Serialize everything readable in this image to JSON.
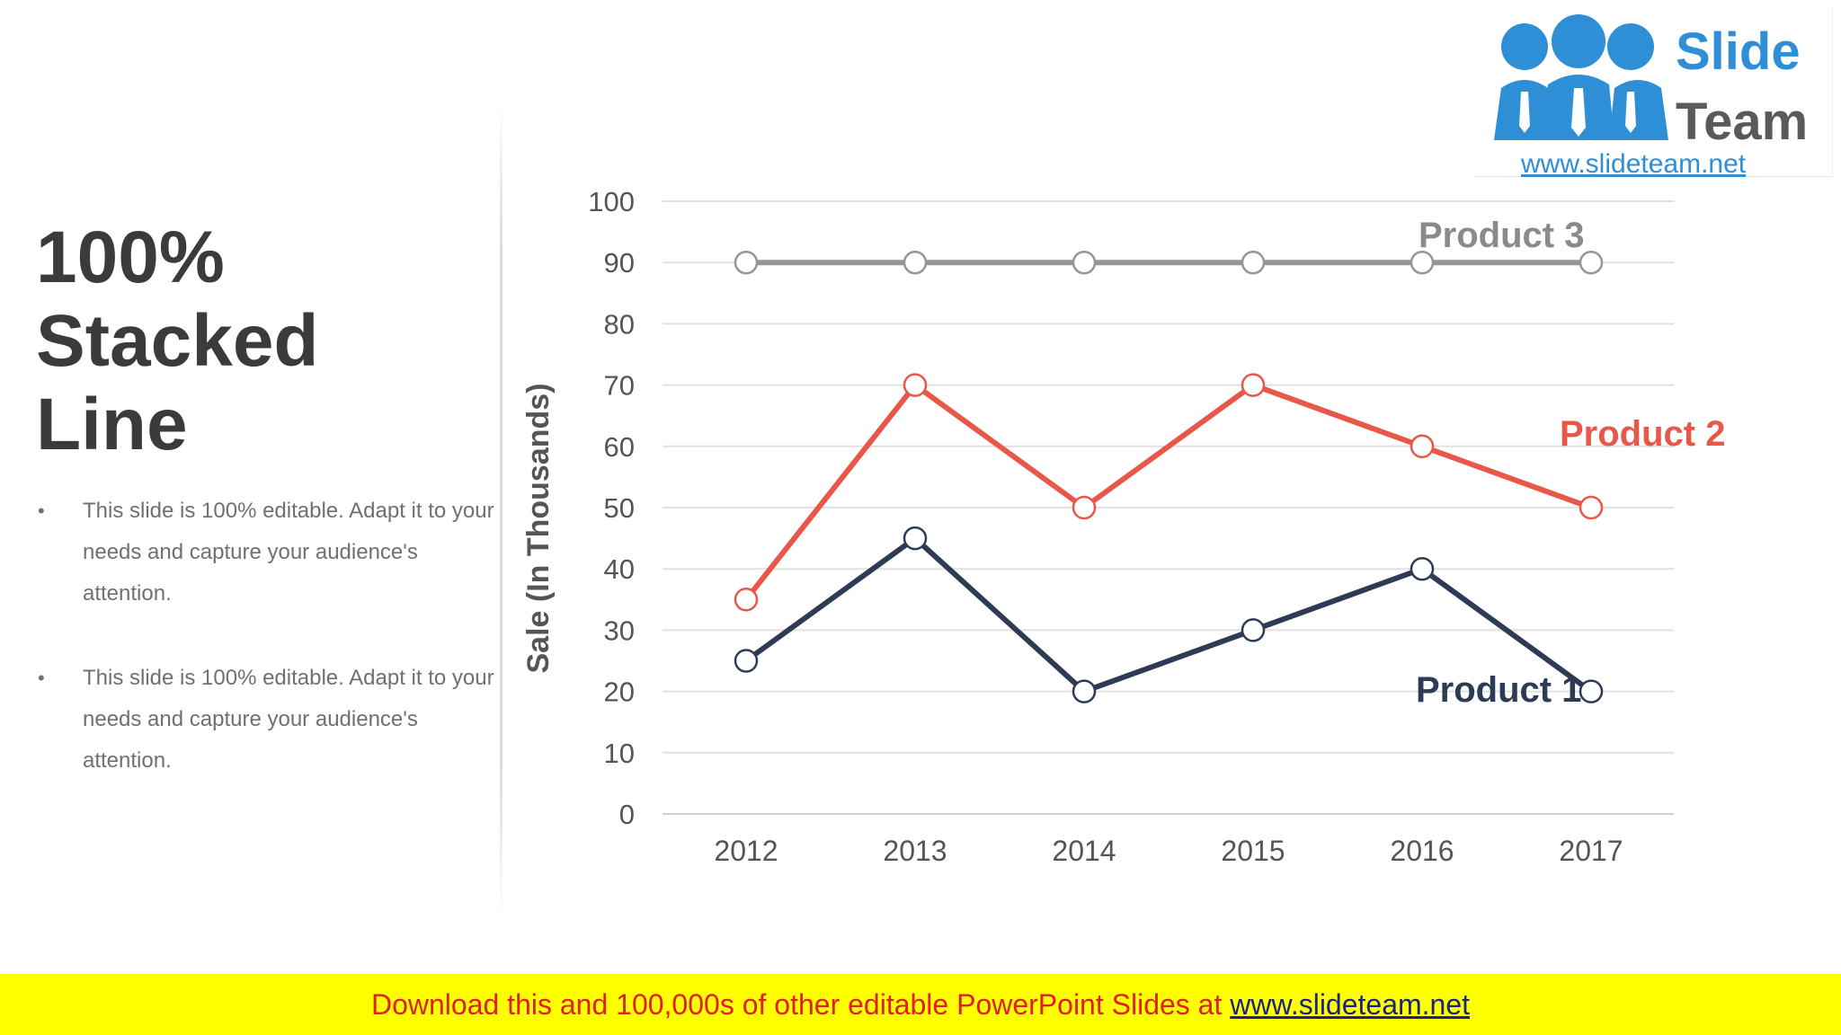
{
  "slide": {
    "title": "100% Stacked Line",
    "bullets": [
      "This slide is 100% editable. Adapt it to your needs and capture your audience's attention.",
      "This slide is 100% editable. Adapt it to your needs and capture your audience's attention."
    ]
  },
  "logo": {
    "word1": "Slide",
    "word2": "Team",
    "url": "www.slideteam.net"
  },
  "footer": {
    "text": "Download this and 100,000s of other editable PowerPoint Slides at",
    "link": "www.slideteam.net"
  },
  "chart_data": {
    "type": "line",
    "title": "",
    "xlabel": "",
    "ylabel": "Sale (In Thousands)",
    "categories": [
      "2012",
      "2013",
      "2014",
      "2015",
      "2016",
      "2017"
    ],
    "ylim": [
      0,
      100
    ],
    "yticks": [
      0,
      10,
      20,
      30,
      40,
      50,
      60,
      70,
      80,
      90,
      100
    ],
    "grid": true,
    "series": [
      {
        "name": "Product 1",
        "values": [
          25,
          45,
          20,
          30,
          40,
          20
        ],
        "color": "#2e3b55"
      },
      {
        "name": "Product 2",
        "values": [
          35,
          70,
          50,
          70,
          60,
          50
        ],
        "color": "#e8574a"
      },
      {
        "name": "Product 3",
        "values": [
          90,
          90,
          90,
          90,
          90,
          90
        ],
        "color": "#969696"
      }
    ]
  }
}
